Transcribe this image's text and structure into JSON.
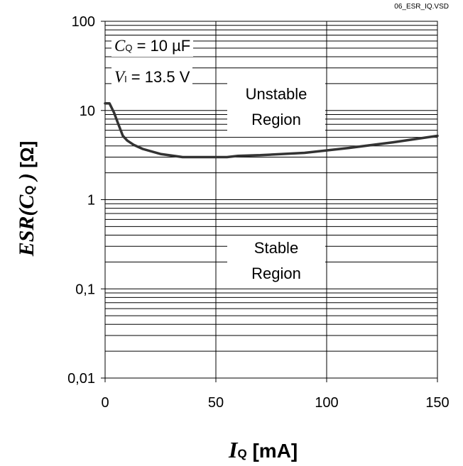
{
  "file_tag": "06_ESR_IQ.VSD",
  "chart_data": {
    "type": "line",
    "title": "",
    "xlabel": {
      "symbol": "I",
      "subscript": "Q",
      "unit": "[mA]"
    },
    "ylabel": {
      "prefix": "ESR(",
      "symbol": "C",
      "subscript": "Q",
      "suffix": ")",
      "unit": "[Ω]"
    },
    "x_scale": "linear",
    "y_scale": "log",
    "xlim": [
      0,
      150
    ],
    "ylim": [
      0.01,
      100
    ],
    "x_ticks": [
      0,
      50,
      100,
      150
    ],
    "x_tick_labels": [
      "0",
      "50",
      "100",
      "150"
    ],
    "y_ticks": [
      0.01,
      0.1,
      1,
      10,
      100
    ],
    "y_tick_labels": [
      "0,01",
      "0,1",
      "1",
      "10",
      "100"
    ],
    "grid": true,
    "series": [
      {
        "color": "#333333",
        "x": [
          0,
          2,
          4,
          6,
          8,
          10,
          13,
          17,
          25,
          35,
          45,
          55,
          60,
          70,
          90,
          110,
          130,
          150
        ],
        "y": [
          12,
          12,
          9.5,
          7,
          5.2,
          4.6,
          4.1,
          3.7,
          3.25,
          3.0,
          3.0,
          3.0,
          3.1,
          3.15,
          3.35,
          3.8,
          4.4,
          5.2
        ]
      }
    ],
    "annotations": {
      "cq": {
        "symbol": "C",
        "subscript": "Q",
        "text": " = 10 µF"
      },
      "vi": {
        "symbol": "V",
        "subscript": "I",
        "text": " = 13.5 V"
      },
      "unstable": {
        "line1": "Unstable",
        "line2": "Region"
      },
      "stable": {
        "line1": "Stable",
        "line2": "Region"
      }
    }
  }
}
